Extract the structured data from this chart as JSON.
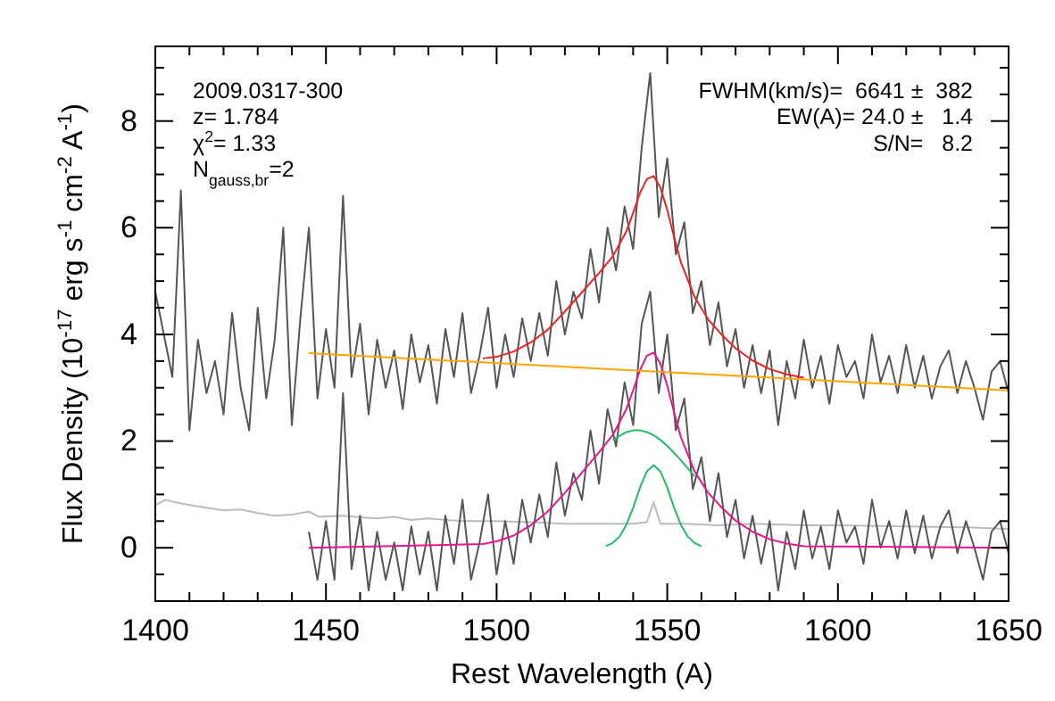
{
  "chart_data": {
    "type": "line",
    "xlabel": "Rest Wavelength (A)",
    "ylabel": "Flux Density (10$^{-17}$ erg s$^{-1}$ cm$^{-2}$ A$^{-1}$)",
    "annotations": [
      "2009.0317-300",
      "z= 1.784",
      "χ$^{2}$= 1.33",
      "N$_{gauss,br}$=2",
      "FWHM(km/s)=  6641 ±  382",
      "EW(A)= 24.0 ±   1.4",
      "S/N=   8.2"
    ],
    "xlim": [
      1400,
      1650
    ],
    "ylim": [
      -1,
      9.4
    ],
    "xticks": [
      1400,
      {
        "value": 1410,
        "label": null
      },
      {
        "value": 1420,
        "label": null
      },
      {
        "value": 1430,
        "label": null
      },
      {
        "value": 1440,
        "label": null
      },
      1450,
      {
        "value": 1460,
        "label": null
      },
      {
        "value": 1470,
        "label": null
      },
      {
        "value": 1480,
        "label": null
      },
      {
        "value": 1490,
        "label": null
      },
      1500,
      {
        "value": 1510,
        "label": null
      },
      {
        "value": 1520,
        "label": null
      },
      {
        "value": 1530,
        "label": null
      },
      {
        "value": 1540,
        "label": null
      },
      1550,
      {
        "value": 1560,
        "label": null
      },
      {
        "value": 1570,
        "label": null
      },
      {
        "value": 1580,
        "label": null
      },
      {
        "value": 1590,
        "label": null
      },
      1600,
      {
        "value": 1610,
        "label": null
      },
      {
        "value": 1620,
        "label": null
      },
      {
        "value": 1630,
        "label": null
      },
      {
        "value": 1640,
        "label": null
      },
      1650
    ],
    "yticks": [
      {
        "value": -0.5,
        "label": null
      },
      0,
      {
        "value": 0.5,
        "label": null
      },
      {
        "value": 1,
        "label": null
      },
      {
        "value": 1.5,
        "label": null
      },
      2,
      {
        "value": 2.5,
        "label": null
      },
      {
        "value": 3,
        "label": null
      },
      {
        "value": 3.5,
        "label": null
      },
      4,
      {
        "value": 4.5,
        "label": null
      },
      {
        "value": 5,
        "label": null
      },
      {
        "value": 5.5,
        "label": null
      },
      6,
      {
        "value": 6.5,
        "label": null
      },
      {
        "value": 7,
        "label": null
      },
      {
        "value": 7.5,
        "label": null
      },
      8,
      {
        "value": 8.5,
        "label": null
      },
      {
        "value": 9,
        "label": null
      }
    ],
    "grid": false,
    "marker": "none",
    "line_style": "solid",
    "series": [
      {
        "color": "#bbbbbb",
        "x": [
          1400,
          1403,
          1406,
          1410,
          1415,
          1420,
          1425,
          1430,
          1435,
          1440,
          1445,
          1448,
          1455,
          1460,
          1465,
          1470,
          1475,
          1480,
          1490,
          1500,
          1510,
          1520,
          1530,
          1540,
          1544,
          1546,
          1548,
          1555,
          1565,
          1575,
          1590,
          1600,
          1620,
          1640,
          1650
        ],
        "values": [
          0.8,
          0.9,
          0.85,
          0.8,
          0.75,
          0.7,
          0.72,
          0.65,
          0.6,
          0.62,
          0.68,
          0.58,
          0.6,
          0.57,
          0.55,
          0.58,
          0.52,
          0.55,
          0.5,
          0.5,
          0.48,
          0.45,
          0.45,
          0.45,
          0.48,
          0.85,
          0.45,
          0.45,
          0.42,
          0.45,
          0.42,
          0.42,
          0.4,
          0.38,
          0.35
        ]
      },
      {
        "color": "#555555",
        "x": [
          1400,
          1402.5,
          1405,
          1407.5,
          1410,
          1412.5,
          1415,
          1417.5,
          1420,
          1422.5,
          1425,
          1427.5,
          1430,
          1432.5,
          1435,
          1437.5,
          1440,
          1442.5,
          1445,
          1447.5,
          1450,
          1452.5,
          1455,
          1457.5,
          1460,
          1462.5,
          1465,
          1467.5,
          1470,
          1472.5,
          1475,
          1477.5,
          1480,
          1482.5,
          1485,
          1487.5,
          1490,
          1492.5,
          1495,
          1497.5,
          1500,
          1502.5,
          1505,
          1507.5,
          1510,
          1512.5,
          1515,
          1517.5,
          1520,
          1522.5,
          1525,
          1527.5,
          1530,
          1532.5,
          1535,
          1537.5,
          1540,
          1542.5,
          1545,
          1547.5,
          1550,
          1552.5,
          1555,
          1557.5,
          1560,
          1562.5,
          1565,
          1567.5,
          1570,
          1572.5,
          1575,
          1577.5,
          1580,
          1582.5,
          1585,
          1587.5,
          1590,
          1592.5,
          1595,
          1597.5,
          1600,
          1602.5,
          1605,
          1607.5,
          1610,
          1612.5,
          1615,
          1617.5,
          1620,
          1622.5,
          1625,
          1627.5,
          1630,
          1632.5,
          1635,
          1637.5,
          1640,
          1642.5,
          1645,
          1647.5,
          1650
        ],
        "values": [
          4.8,
          4.0,
          3.2,
          6.7,
          2.2,
          3.9,
          2.9,
          3.5,
          2.5,
          4.4,
          3.0,
          2.2,
          4.5,
          2.8,
          3.9,
          6.0,
          2.3,
          4.3,
          6.0,
          2.8,
          4.1,
          3.0,
          6.6,
          3.2,
          4.2,
          2.5,
          3.9,
          3.0,
          3.7,
          2.6,
          4.0,
          3.1,
          3.8,
          2.7,
          4.1,
          3.2,
          4.4,
          2.9,
          3.6,
          4.5,
          3.0,
          4.0,
          3.2,
          4.3,
          3.5,
          4.4,
          3.6,
          5.0,
          4.0,
          4.8,
          4.3,
          5.6,
          4.6,
          6.0,
          5.2,
          6.4,
          5.6,
          7.5,
          8.9,
          6.2,
          7.3,
          5.5,
          6.1,
          4.4,
          5.0,
          3.8,
          4.6,
          3.4,
          4.1,
          3.0,
          3.8,
          2.9,
          3.7,
          2.3,
          3.5,
          2.8,
          3.9,
          3.0,
          3.6,
          2.7,
          3.8,
          3.2,
          3.5,
          2.8,
          4.0,
          3.1,
          3.6,
          2.9,
          3.8,
          3.0,
          3.6,
          2.8,
          3.4,
          3.7,
          2.9,
          3.5,
          3.0,
          2.4,
          3.3,
          3.5,
          2.9
        ]
      },
      {
        "color": "#555555",
        "x": [
          1445,
          1447.5,
          1450,
          1452.5,
          1455,
          1457.5,
          1460,
          1462.5,
          1465,
          1467.5,
          1470,
          1472.5,
          1475,
          1477.5,
          1480,
          1482.5,
          1485,
          1487.5,
          1490,
          1492.5,
          1495,
          1497.5,
          1500,
          1502.5,
          1505,
          1507.5,
          1510,
          1512.5,
          1515,
          1517.5,
          1520,
          1522.5,
          1525,
          1527.5,
          1530,
          1532.5,
          1535,
          1537.5,
          1540,
          1542.5,
          1545,
          1547.5,
          1550,
          1552.5,
          1555,
          1557.5,
          1560,
          1562.5,
          1565,
          1567.5,
          1570,
          1572.5,
          1575,
          1577.5,
          1580,
          1582.5,
          1585,
          1587.5,
          1590,
          1592.5,
          1595,
          1597.5,
          1600,
          1602.5,
          1605,
          1607.5,
          1610,
          1612.5,
          1615,
          1617.5,
          1620,
          1622.5,
          1625,
          1627.5,
          1630,
          1632.5,
          1635,
          1637.5,
          1640,
          1642.5,
          1645,
          1647.5,
          1650
        ],
        "values": [
          0.3,
          -0.6,
          0.5,
          -0.6,
          2.9,
          -0.4,
          0.6,
          -0.8,
          0.3,
          -0.6,
          0.1,
          -0.8,
          0.4,
          -0.5,
          0.3,
          -0.8,
          0.6,
          -0.3,
          0.9,
          -0.6,
          0.1,
          1.0,
          -0.5,
          0.5,
          -0.3,
          0.9,
          0.1,
          1.0,
          0.2,
          1.6,
          0.6,
          1.4,
          0.9,
          2.2,
          1.2,
          2.6,
          1.9,
          3.1,
          2.3,
          4.2,
          4.8,
          2.9,
          4.0,
          2.2,
          2.8,
          1.1,
          1.7,
          0.5,
          1.4,
          0.2,
          0.9,
          -0.2,
          0.6,
          -0.3,
          0.5,
          -0.8,
          0.3,
          -0.4,
          0.7,
          -0.2,
          0.4,
          -0.4,
          0.7,
          0.1,
          0.4,
          -0.3,
          0.9,
          0.0,
          0.5,
          -0.2,
          0.7,
          -0.1,
          0.6,
          -0.2,
          0.4,
          0.7,
          -0.1,
          0.5,
          0.0,
          -0.6,
          0.3,
          0.5,
          -0.1
        ]
      },
      {
        "color": "#22bb66",
        "x": [
          1534,
          1538,
          1540,
          1542,
          1544,
          1546,
          1548,
          1550,
          1552,
          1554,
          1558
        ],
        "values": [
          2.02,
          2.17,
          2.2,
          2.2,
          2.17,
          2.11,
          2.02,
          1.91,
          1.78,
          1.64,
          1.34
        ]
      },
      {
        "color": "#22bb66",
        "x": [
          1532,
          1534,
          1536,
          1538,
          1540,
          1542,
          1544,
          1546,
          1548,
          1550,
          1552,
          1554,
          1556,
          1558,
          1560
        ],
        "values": [
          0.03,
          0.09,
          0.21,
          0.43,
          0.75,
          1.13,
          1.43,
          1.55,
          1.43,
          1.13,
          0.75,
          0.43,
          0.21,
          0.09,
          0.03
        ]
      },
      {
        "color": "#e8168c",
        "x": [
          1445,
          1496,
          1500,
          1505,
          1510,
          1515,
          1520,
          1525,
          1530,
          1534,
          1538,
          1540,
          1542,
          1544,
          1546,
          1548,
          1550,
          1552,
          1554,
          1558,
          1562,
          1566,
          1570,
          1575,
          1580,
          1585,
          1590,
          1650
        ],
        "values": [
          0,
          0.07,
          0.12,
          0.23,
          0.42,
          0.68,
          1.03,
          1.41,
          1.79,
          2.11,
          2.6,
          2.95,
          3.33,
          3.6,
          3.66,
          3.45,
          3.04,
          2.53,
          2.07,
          1.43,
          1.03,
          0.75,
          0.51,
          0.3,
          0.16,
          0.08,
          0.03,
          0
        ]
      },
      {
        "color": "#ffa500",
        "x": [
          1445,
          1650
        ],
        "values": [
          3.65,
          2.95
        ]
      },
      {
        "color": "#ee2222",
        "x": [
          1496,
          1500,
          1505,
          1510,
          1515,
          1520,
          1525,
          1530,
          1534,
          1538,
          1540,
          1542,
          1544,
          1546,
          1548,
          1550,
          1552,
          1554,
          1558,
          1562,
          1566,
          1570,
          1575,
          1580,
          1585,
          1590
        ],
        "values": [
          3.55,
          3.58,
          3.68,
          3.85,
          4.09,
          4.43,
          4.79,
          5.15,
          5.46,
          5.93,
          6.28,
          6.65,
          6.91,
          6.97,
          6.75,
          6.33,
          5.82,
          5.35,
          4.7,
          4.28,
          3.99,
          3.74,
          3.51,
          3.35,
          3.25,
          3.19
        ]
      }
    ]
  }
}
